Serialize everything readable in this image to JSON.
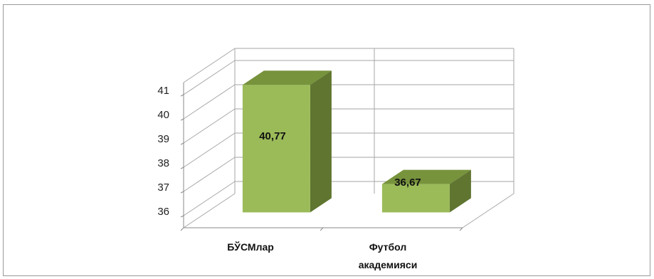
{
  "chart_data": {
    "type": "bar",
    "three_d": true,
    "categories": [
      "БЎСМлар",
      "Футбол академияси"
    ],
    "category_lines": [
      [
        "БЎСМлар"
      ],
      [
        "Футбол",
        "академияси"
      ]
    ],
    "values": [
      40.77,
      36.67
    ],
    "data_labels": [
      "40,77",
      "36,67"
    ],
    "yticks": [
      "36",
      "37",
      "38",
      "39",
      "40",
      "41"
    ],
    "ylim": [
      35.5,
      41.5
    ],
    "grid": true,
    "legend": "none",
    "colors": {
      "front": "#9bbb59",
      "top": "#77933c",
      "side": "#5f7530",
      "grid": "#a6a6a6"
    }
  }
}
